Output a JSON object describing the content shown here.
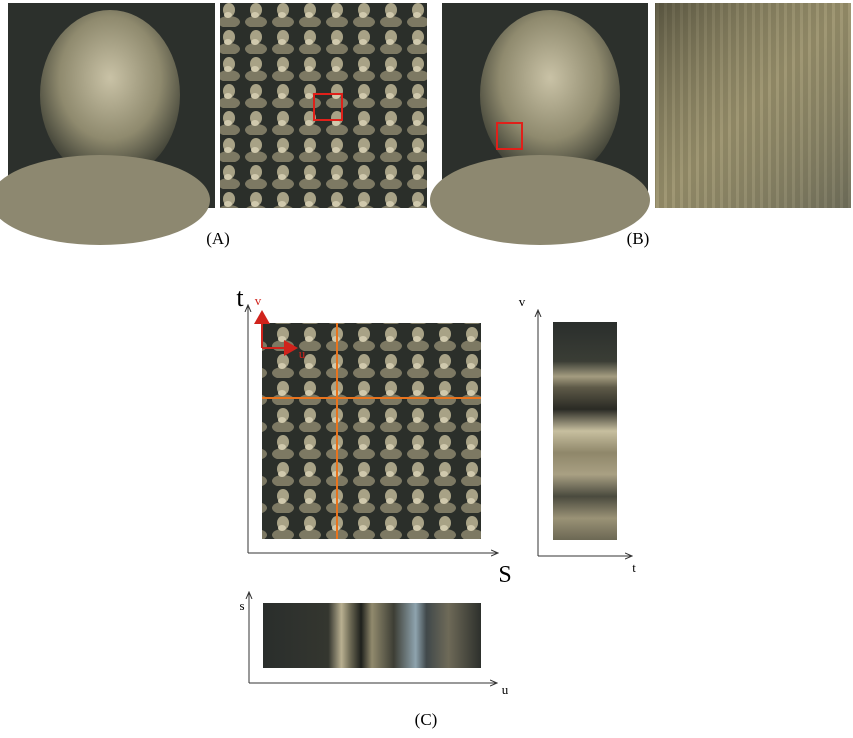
{
  "panel_a": {
    "caption": "(A)"
  },
  "panel_b": {
    "caption": "(B)"
  },
  "panel_c": {
    "caption": "(C)",
    "main_plot": {
      "x_axis": "S",
      "y_axis": "t",
      "local_u": "u",
      "local_v": "v"
    },
    "right_plot": {
      "x_axis": "t",
      "y_axis": "v"
    },
    "bottom_plot": {
      "x_axis": "u",
      "y_axis": "s"
    }
  }
}
